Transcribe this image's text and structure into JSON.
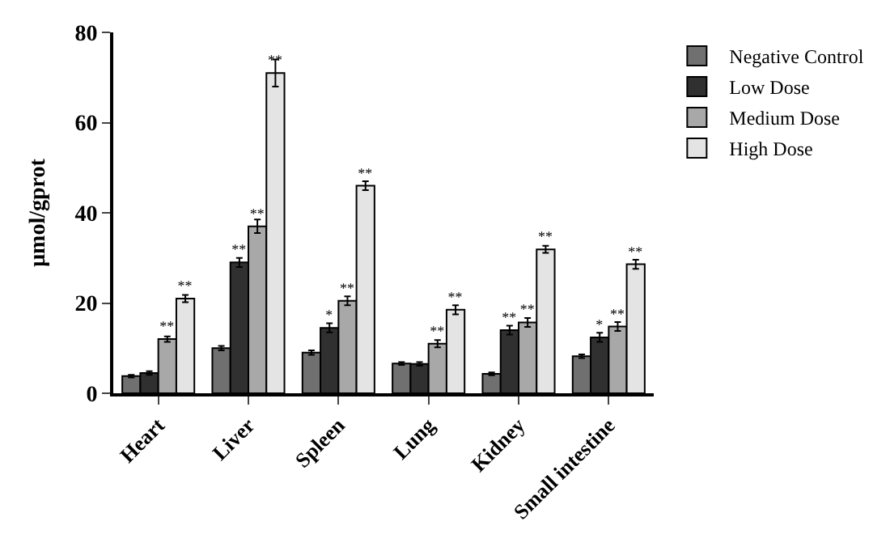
{
  "chart_data": {
    "type": "bar",
    "ylabel": "μmol/gprot",
    "categories": [
      "Heart",
      "Liver",
      "Spleen",
      "Lung",
      "Kidney",
      "Small intestine"
    ],
    "series": [
      {
        "name": "Negative Control",
        "color": "#707070",
        "values": [
          3.8,
          10,
          9,
          6.6,
          4.3,
          8.2
        ],
        "errors": [
          0.3,
          0.5,
          0.5,
          0.3,
          0.3,
          0.4
        ],
        "value_labels": [
          null,
          null,
          null,
          null,
          null,
          null
        ]
      },
      {
        "name": "Low Dose",
        "color": "#303030",
        "values": [
          4.5,
          29,
          14.5,
          6.5,
          14,
          12.4
        ],
        "errors": [
          0.4,
          1,
          1,
          0.4,
          1,
          1
        ],
        "value_labels": [
          null,
          "**",
          "*",
          null,
          "**",
          "*"
        ]
      },
      {
        "name": "Medium Dose",
        "color": "#a8a8a8",
        "values": [
          12,
          37,
          20.5,
          11,
          15.7,
          14.8
        ],
        "errors": [
          0.6,
          1.5,
          1,
          0.8,
          1,
          1
        ],
        "value_labels": [
          "**",
          "**",
          "**",
          "**",
          "**",
          "**"
        ]
      },
      {
        "name": "High Dose",
        "color": "#e4e4e4",
        "values": [
          21,
          71,
          46,
          18.5,
          31.9,
          28.6
        ],
        "errors": [
          0.8,
          3,
          1,
          1,
          0.8,
          1
        ],
        "value_labels": [
          "**",
          "**",
          "**",
          "**",
          "**",
          "**"
        ]
      }
    ],
    "ylim": [
      0,
      80
    ],
    "yticks": [
      0,
      20,
      40,
      60,
      80
    ],
    "legend": "top right"
  }
}
